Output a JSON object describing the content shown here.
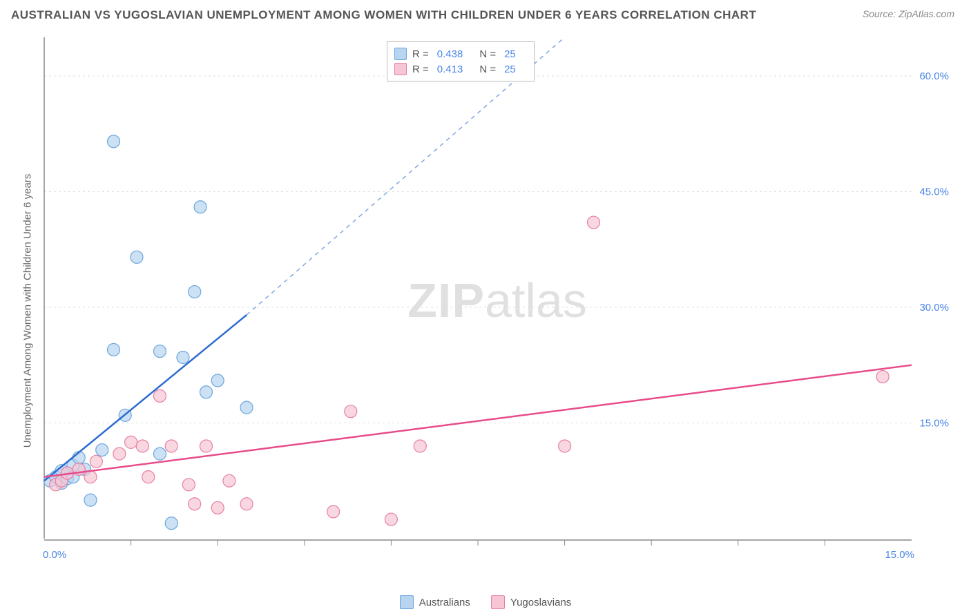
{
  "title": "AUSTRALIAN VS YUGOSLAVIAN UNEMPLOYMENT AMONG WOMEN WITH CHILDREN UNDER 6 YEARS CORRELATION CHART",
  "source": "Source: ZipAtlas.com",
  "y_axis_label": "Unemployment Among Women with Children Under 6 years",
  "watermark_bold": "ZIP",
  "watermark_light": "atlas",
  "colors": {
    "series_a_fill": "#b8d4f0",
    "series_a_stroke": "#6aa6de",
    "series_b_fill": "#f6c6d4",
    "series_b_stroke": "#e77fa3",
    "line_a": "#2d6bd0",
    "line_b": "#e84b8a",
    "axis": "#888888",
    "grid": "#dddddd",
    "tick_text": "#4a86e8",
    "label_text": "#666666",
    "background": "#ffffff"
  },
  "chart": {
    "type": "scatter",
    "x_range": [
      0,
      15
    ],
    "y_range": [
      0,
      65
    ],
    "x_ticks": [
      0,
      15
    ],
    "x_tick_labels": [
      "0.0%",
      "15.0%"
    ],
    "x_minor_ticks": [
      1.5,
      3.0,
      4.5,
      6.0,
      7.5,
      9.0,
      10.5,
      12.0,
      13.5
    ],
    "y_ticks": [
      15,
      30,
      45,
      60
    ],
    "y_tick_labels": [
      "15.0%",
      "30.0%",
      "45.0%",
      "60.0%"
    ],
    "marker_radius": 9,
    "marker_opacity": 0.7,
    "grid_dash": "3,4"
  },
  "stats": [
    {
      "r_label": "R =",
      "r": "0.438",
      "n_label": "N =",
      "n": "25",
      "swatch_fill": "#b8d4f0",
      "swatch_stroke": "#6aa6de"
    },
    {
      "r_label": "R =",
      "r": "0.413",
      "n_label": "N =",
      "n": "25",
      "swatch_fill": "#f6c6d4",
      "swatch_stroke": "#e77fa3"
    }
  ],
  "legend": [
    {
      "label": "Australians",
      "fill": "#b8d4f0",
      "stroke": "#6aa6de"
    },
    {
      "label": "Yugoslavians",
      "fill": "#f6c6d4",
      "stroke": "#e77fa3"
    }
  ],
  "series_a": {
    "name": "Australians",
    "points": [
      [
        0.1,
        7.5
      ],
      [
        0.2,
        8.0
      ],
      [
        0.3,
        7.2
      ],
      [
        0.3,
        8.8
      ],
      [
        0.4,
        7.8
      ],
      [
        0.4,
        8.5
      ],
      [
        0.5,
        9.5
      ],
      [
        0.5,
        8.0
      ],
      [
        0.6,
        10.5
      ],
      [
        0.7,
        9.0
      ],
      [
        0.8,
        5.0
      ],
      [
        1.0,
        11.5
      ],
      [
        1.2,
        51.5
      ],
      [
        1.2,
        24.5
      ],
      [
        1.4,
        16.0
      ],
      [
        1.6,
        36.5
      ],
      [
        2.0,
        11.0
      ],
      [
        2.0,
        24.3
      ],
      [
        2.2,
        2.0
      ],
      [
        2.4,
        23.5
      ],
      [
        2.6,
        32.0
      ],
      [
        2.7,
        43.0
      ],
      [
        2.8,
        19.0
      ],
      [
        3.0,
        20.5
      ],
      [
        3.5,
        17.0
      ]
    ],
    "trend_solid": {
      "x1": 0,
      "y1": 7.5,
      "x2": 3.5,
      "y2": 29.0
    },
    "trend_dashed": {
      "x1": 3.5,
      "y1": 29.0,
      "x2": 9.0,
      "y2": 65.0
    }
  },
  "series_b": {
    "name": "Yugoslavians",
    "points": [
      [
        0.2,
        7.0
      ],
      [
        0.3,
        7.5
      ],
      [
        0.4,
        8.5
      ],
      [
        0.6,
        9.0
      ],
      [
        0.8,
        8.0
      ],
      [
        0.9,
        10.0
      ],
      [
        1.3,
        11.0
      ],
      [
        1.5,
        12.5
      ],
      [
        1.7,
        12.0
      ],
      [
        1.8,
        8.0
      ],
      [
        2.0,
        18.5
      ],
      [
        2.2,
        12.0
      ],
      [
        2.5,
        7.0
      ],
      [
        2.6,
        4.5
      ],
      [
        2.8,
        12.0
      ],
      [
        3.0,
        4.0
      ],
      [
        3.2,
        7.5
      ],
      [
        3.5,
        4.5
      ],
      [
        5.0,
        3.5
      ],
      [
        5.3,
        16.5
      ],
      [
        6.0,
        2.5
      ],
      [
        6.5,
        12.0
      ],
      [
        9.0,
        12.0
      ],
      [
        9.5,
        41.0
      ],
      [
        14.5,
        21.0
      ]
    ],
    "trend_solid": {
      "x1": 0,
      "y1": 8.0,
      "x2": 15.0,
      "y2": 22.5
    }
  }
}
